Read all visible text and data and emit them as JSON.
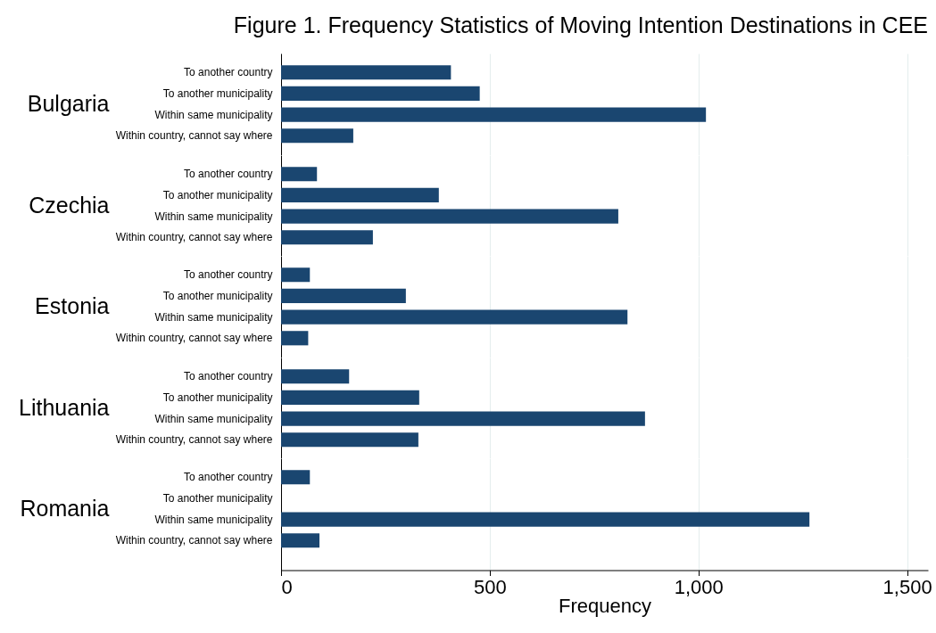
{
  "chart_data": [
    {
      "type": "bar",
      "orientation": "horizontal",
      "title": "Figure 1. Frequency Statistics of Moving Intention Destinations in CEE",
      "ylabel": "Bulgaria",
      "categories": [
        "To another country",
        "To another municipality",
        "Within same municipality",
        "Within country, cannot say where"
      ],
      "values": [
        407,
        476,
        1018,
        173
      ],
      "color": "#1a4670",
      "xlim": [
        0,
        1550
      ],
      "xticks": [
        0,
        500,
        1000,
        1500
      ],
      "grid": "x",
      "tick_labels": "y"
    },
    {
      "type": "bar",
      "orientation": "horizontal",
      "ylabel": "Czechia",
      "categories": [
        "To another country",
        "To another municipality",
        "Within same municipality",
        "Within country, cannot say where"
      ],
      "values": [
        86,
        378,
        808,
        220
      ],
      "color": "#1a4670",
      "xlim": [
        0,
        1550
      ],
      "xticks": [
        0,
        500,
        1000,
        1500
      ],
      "grid": "x",
      "tick_labels": "y"
    },
    {
      "type": "bar",
      "orientation": "horizontal",
      "ylabel": "Estonia",
      "categories": [
        "To another country",
        "To another municipality",
        "Within same municipality",
        "Within country, cannot say where"
      ],
      "values": [
        69,
        299,
        830,
        65
      ],
      "color": "#1a4670",
      "xlim": [
        0,
        1550
      ],
      "xticks": [
        0,
        500,
        1000,
        1500
      ],
      "grid": "x",
      "tick_labels": "y"
    },
    {
      "type": "bar",
      "orientation": "horizontal",
      "ylabel": "Lithuania",
      "categories": [
        "To another country",
        "To another municipality",
        "Within same municipality",
        "Within country, cannot say where"
      ],
      "values": [
        163,
        331,
        872,
        329
      ],
      "color": "#1a4670",
      "xlim": [
        0,
        1550
      ],
      "xticks": [
        0,
        500,
        1000,
        1500
      ],
      "grid": "x",
      "tick_labels": "y"
    },
    {
      "type": "bar",
      "orientation": "horizontal",
      "ylabel": "Romania",
      "xlabel": "Frequency",
      "categories": [
        "To another country",
        "To another municipality",
        "Within same municipality",
        "Within country, cannot say where"
      ],
      "values": [
        69,
        null,
        1266,
        92
      ],
      "color": "#1a4670",
      "xlim": [
        0,
        1550
      ],
      "xticks": [
        0,
        {
          "value": 500,
          "label": "500"
        },
        {
          "value": 1000,
          "label": "1,000"
        },
        {
          "value": 1500,
          "label": "1,500"
        }
      ],
      "grid": "x"
    }
  ]
}
